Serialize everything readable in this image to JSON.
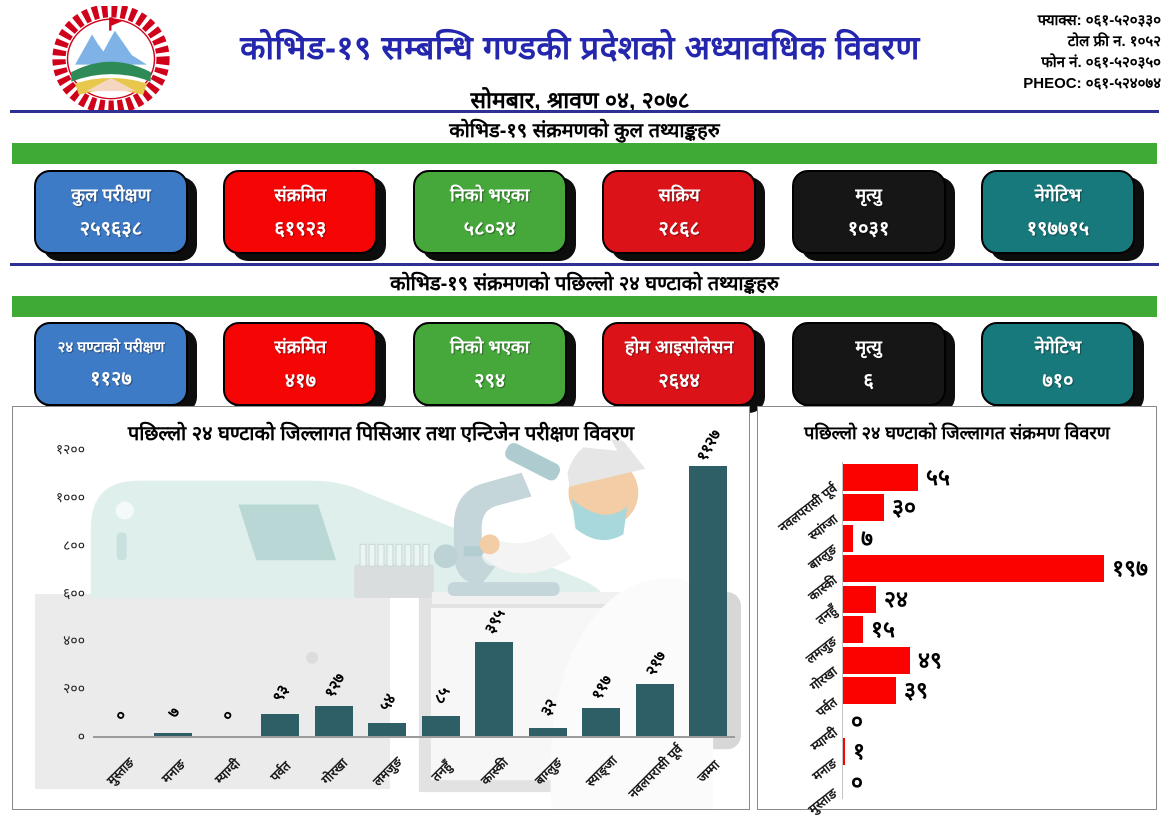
{
  "header": {
    "title": "कोभिड-१९ सम्बन्धि गण्डकी प्रदेशको अध्यावधिक विवरण",
    "date": "सोमबार, श्रावण ०४, २०७८",
    "contacts": [
      "फ्याक्स: ०६१-५२०३३०",
      "टोल फ्री न. १०५२",
      "फोन नं. ०६१-५२०३५०",
      "PHEOC: ०६१-५२४०७४"
    ]
  },
  "colors": {
    "accent_blue": "#2427AE",
    "navy_line": "#2E3192",
    "green_bar": "#3FAB35",
    "teal_bar": "#2E5E66",
    "red_bar": "#FB0200"
  },
  "section_total": {
    "heading": "कोभिड-१९ संक्रमणको कुल तथ्याङ्कहरु",
    "cards": [
      {
        "key": "total-tests",
        "label": "कुल परीक्षण",
        "value": "२५९६३८",
        "color": "#3E7BC7"
      },
      {
        "key": "infected",
        "label": "संक्रमित",
        "value": "६१९२३",
        "color": "#F60505"
      },
      {
        "key": "recovered",
        "label": "निको भएका",
        "value": "५८०२४",
        "color": "#46A83B"
      },
      {
        "key": "active",
        "label": "सक्रिय",
        "value": "२८६८",
        "color": "#DC1219"
      },
      {
        "key": "deaths",
        "label": "मृत्यु",
        "value": "१०३१",
        "color": "#161616"
      },
      {
        "key": "negative",
        "label": "नेगेटिभ",
        "value": "१९७७१५",
        "color": "#18797C"
      }
    ]
  },
  "section_24h": {
    "heading": "कोभिड-१९ संक्रमणको पछिल्लो २४ घण्टाको तथ्याङ्कहरु",
    "cards": [
      {
        "key": "tests-24h",
        "label": "२४ घण्टाको परीक्षण",
        "value": "११२७",
        "color": "#3E7BC7"
      },
      {
        "key": "infected",
        "label": "संक्रमित",
        "value": "४१७",
        "color": "#F60505"
      },
      {
        "key": "recovered",
        "label": "निको भएका",
        "value": "२९४",
        "color": "#46A83B"
      },
      {
        "key": "home-isolation",
        "label": "होम आइसोलेसन",
        "value": "२६४४",
        "color": "#DC1219"
      },
      {
        "key": "deaths",
        "label": "मृत्यु",
        "value": "६",
        "color": "#161616"
      },
      {
        "key": "negative",
        "label": "नेगेटिभ",
        "value": "७१०",
        "color": "#18797C"
      }
    ]
  },
  "chart_data": [
    {
      "type": "bar",
      "title": "पछिल्लो २४ घण्टाको जिल्लागत पिसिआर तथा एन्टिजेन परीक्षण विवरण",
      "categories": [
        "मुस्ताङ",
        "मनाङ",
        "म्याग्दी",
        "पर्वत",
        "गोरखा",
        "लमजुङ",
        "तनहुँ",
        "कास्की",
        "बाग्लुङ",
        "स्याङ्जा",
        "नवलपरासी पूर्व",
        "जम्मा"
      ],
      "values": [
        0,
        7,
        0,
        93,
        127,
        54,
        85,
        395,
        32,
        117,
        217,
        1127
      ],
      "value_labels": [
        "०",
        "७",
        "०",
        "९३",
        "१२७",
        "५४",
        "८५",
        "३९५",
        "३२",
        "११७",
        "२१७",
        "११२७"
      ],
      "xlabel": "",
      "ylabel": "",
      "ylim": [
        0,
        1200
      ],
      "yticks": [
        0,
        200,
        400,
        600,
        800,
        1000,
        1200
      ],
      "ytick_labels": [
        "०",
        "२००",
        "४००",
        "६००",
        "८००",
        "१०००",
        "१२००"
      ],
      "grid": false,
      "bar_color": "#2E5E66"
    },
    {
      "type": "bar-horizontal",
      "title": "पछिल्लो २४ घण्टाको जिल्लागत संक्रमण विवरण",
      "categories": [
        "नवलपरासी पूर्व",
        "स्यांग्जा",
        "बाग्लुङ",
        "कास्की",
        "तनहुँ",
        "लमजुङ",
        "गोरखा",
        "पर्वत",
        "म्याग्दी",
        "मनाङ",
        "मुस्ताङ"
      ],
      "values": [
        55,
        30,
        7,
        197,
        24,
        15,
        49,
        39,
        0,
        1,
        0
      ],
      "value_labels": [
        "५५",
        "३०",
        "७",
        "१९७",
        "२४",
        "१५",
        "४९",
        "३९",
        "०",
        "१",
        "०"
      ],
      "xlabel": "",
      "ylabel": "",
      "xlim": [
        0,
        200
      ],
      "grid": false,
      "bar_color": "#FB0200"
    }
  ]
}
